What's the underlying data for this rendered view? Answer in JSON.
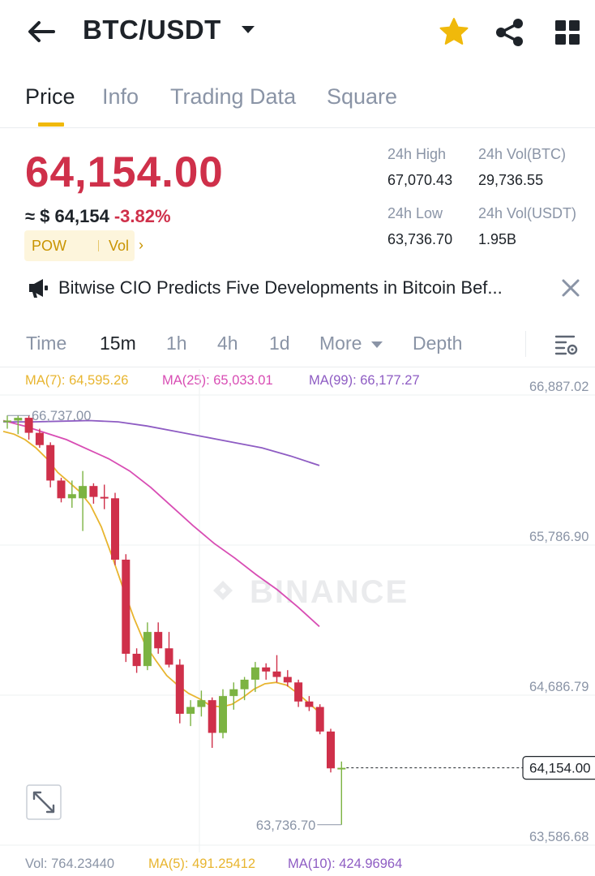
{
  "header": {
    "pair": "BTC/USDT",
    "icons": [
      "back-arrow-icon",
      "caret-down-icon",
      "star-icon",
      "share-icon",
      "grid-icon"
    ],
    "favorite_color": "#F0B90B"
  },
  "tabs": [
    {
      "label": "Price",
      "active": true
    },
    {
      "label": "Info",
      "active": false
    },
    {
      "label": "Trading Data",
      "active": false
    },
    {
      "label": "Square",
      "active": false
    }
  ],
  "ticker": {
    "last_price": "64,154.00",
    "usd_approx": "≈ $ 64,154",
    "change": "-3.82%",
    "tag1": "POW",
    "tag2": "Vol",
    "high_label": "24h High",
    "high": "67,070.43",
    "low_label": "24h Low",
    "low": "63,736.70",
    "vol_btc_label": "24h Vol(BTC)",
    "vol_btc": "29,736.55",
    "vol_usdt_label": "24h Vol(USDT)",
    "vol_usdt": "1.95B",
    "down_color": "#CF304A",
    "up_color": "#7CB342"
  },
  "news": {
    "text": "Bitwise CIO Predicts Five Developments in Bitcoin Bef..."
  },
  "timeframes": [
    {
      "label": "Time",
      "active": false
    },
    {
      "label": "15m",
      "active": true
    },
    {
      "label": "1h",
      "active": false
    },
    {
      "label": "4h",
      "active": false
    },
    {
      "label": "1d",
      "active": false
    },
    {
      "label": "More",
      "active": false
    },
    {
      "label": "Depth",
      "active": false
    }
  ],
  "ma_legend": {
    "ma7": "MA(7): 64,595.26",
    "ma25": "MA(25): 65,033.01",
    "ma99": "MA(99): 66,177.27",
    "ma7_color": "#E8B52F",
    "ma25_color": "#D84DB4",
    "ma99_color": "#8E5CC3"
  },
  "vol_legend": {
    "vol": "Vol: 764.23440",
    "ma5": "MA(5): 491.25412",
    "ma10": "MA(10): 424.96964"
  },
  "chart_data": {
    "type": "candlestick",
    "watermark": "BINANCE",
    "y_ticks": [
      "66,887.02",
      "65,786.90",
      "64,686.79",
      "63,586.68"
    ],
    "y_tick_values": [
      66887.02,
      65786.9,
      64686.79,
      63586.68
    ],
    "ylim": [
      63530,
      66900
    ],
    "high_label": "66,737.00",
    "low_label": "63,736.70",
    "current_price_label": "64,154.00",
    "current_price": 64154.0,
    "candles": [
      {
        "o": 66690,
        "h": 66737,
        "l": 66640,
        "c": 66700
      },
      {
        "o": 66700,
        "h": 66737,
        "l": 66600,
        "c": 66720
      },
      {
        "o": 66720,
        "h": 66737,
        "l": 66560,
        "c": 66610
      },
      {
        "o": 66610,
        "h": 66640,
        "l": 66500,
        "c": 66520
      },
      {
        "o": 66520,
        "h": 66540,
        "l": 66210,
        "c": 66260
      },
      {
        "o": 66260,
        "h": 66280,
        "l": 66100,
        "c": 66130
      },
      {
        "o": 66130,
        "h": 66260,
        "l": 66060,
        "c": 66160
      },
      {
        "o": 66130,
        "h": 66330,
        "l": 65890,
        "c": 66220
      },
      {
        "o": 66220,
        "h": 66240,
        "l": 66090,
        "c": 66140
      },
      {
        "o": 66140,
        "h": 66230,
        "l": 66050,
        "c": 66130
      },
      {
        "o": 66130,
        "h": 66170,
        "l": 65640,
        "c": 65680
      },
      {
        "o": 65680,
        "h": 65720,
        "l": 64930,
        "c": 64990
      },
      {
        "o": 64990,
        "h": 65030,
        "l": 64850,
        "c": 64900
      },
      {
        "o": 64900,
        "h": 65220,
        "l": 64870,
        "c": 65150
      },
      {
        "o": 65150,
        "h": 65220,
        "l": 64990,
        "c": 65030
      },
      {
        "o": 65030,
        "h": 65150,
        "l": 64890,
        "c": 64910
      },
      {
        "o": 64910,
        "h": 64950,
        "l": 64480,
        "c": 64550
      },
      {
        "o": 64550,
        "h": 64650,
        "l": 64460,
        "c": 64600
      },
      {
        "o": 64600,
        "h": 64720,
        "l": 64530,
        "c": 64650
      },
      {
        "o": 64650,
        "h": 64670,
        "l": 64300,
        "c": 64410
      },
      {
        "o": 64410,
        "h": 64730,
        "l": 64370,
        "c": 64680
      },
      {
        "o": 64680,
        "h": 64780,
        "l": 64580,
        "c": 64730
      },
      {
        "o": 64730,
        "h": 64820,
        "l": 64650,
        "c": 64800
      },
      {
        "o": 64800,
        "h": 64930,
        "l": 64710,
        "c": 64890
      },
      {
        "o": 64890,
        "h": 64920,
        "l": 64800,
        "c": 64860
      },
      {
        "o": 64860,
        "h": 64980,
        "l": 64780,
        "c": 64820
      },
      {
        "o": 64820,
        "h": 64870,
        "l": 64750,
        "c": 64780
      },
      {
        "o": 64780,
        "h": 64800,
        "l": 64600,
        "c": 64640
      },
      {
        "o": 64640,
        "h": 64680,
        "l": 64570,
        "c": 64600
      },
      {
        "o": 64600,
        "h": 64620,
        "l": 64400,
        "c": 64420
      },
      {
        "o": 64420,
        "h": 64440,
        "l": 64120,
        "c": 64150
      },
      {
        "o": 64150,
        "h": 64200,
        "l": 63736.7,
        "c": 64154
      }
    ],
    "ma7": [
      66620,
      66600,
      66560,
      66500,
      66420,
      66320,
      66250,
      66180,
      66080,
      65920,
      65700,
      65470,
      65250,
      65060,
      64940,
      64830,
      64760,
      64700,
      64660,
      64610,
      64600,
      64620,
      64670,
      64730,
      64770,
      64780,
      64760,
      64700,
      64630,
      64560
    ],
    "ma25": [
      66700,
      66660,
      66610,
      66560,
      66490,
      66420,
      66330,
      66210,
      66070,
      65930,
      65800,
      65690,
      65570,
      65460,
      65330,
      65190
    ],
    "ma99": [
      66690,
      66690,
      66695,
      66700,
      66690,
      66660,
      66620,
      66580,
      66540,
      66500,
      66440,
      66370
    ]
  }
}
